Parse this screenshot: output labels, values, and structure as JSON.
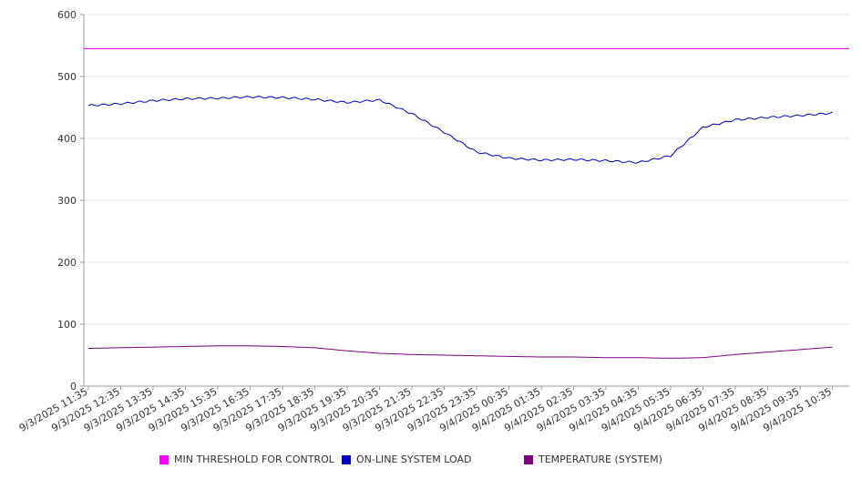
{
  "chart_data": {
    "type": "line",
    "x": [
      "9/3/2025 11:35",
      "9/3/2025 12:35",
      "9/3/2025 13:35",
      "9/3/2025 14:35",
      "9/3/2025 15:35",
      "9/3/2025 16:35",
      "9/3/2025 17:35",
      "9/3/2025 18:35",
      "9/3/2025 19:35",
      "9/3/2025 20:35",
      "9/3/2025 21:35",
      "9/3/2025 22:35",
      "9/3/2025 23:35",
      "9/4/2025 00:35",
      "9/4/2025 01:35",
      "9/4/2025 02:35",
      "9/4/2025 03:35",
      "9/4/2025 04:35",
      "9/4/2025 05:35",
      "9/4/2025 06:35",
      "9/4/2025 07:35",
      "9/4/2025 08:35",
      "9/4/2025 09:35",
      "9/4/2025 10:35"
    ],
    "ylim": [
      0,
      600
    ],
    "yticks": [
      0,
      100,
      200,
      300,
      400,
      500,
      600
    ],
    "grid": true,
    "legend_position": "bottom",
    "series": [
      {
        "name": "MIN THRESHOLD FOR CONTROL",
        "color": "#ff00ff",
        "values": [
          545,
          545,
          545,
          545,
          545,
          545,
          545,
          545,
          545,
          545,
          545,
          545,
          545,
          545,
          545,
          545,
          545,
          545,
          545,
          545,
          545,
          545,
          545,
          545
        ]
      },
      {
        "name": "ON-LINE SYSTEM LOAD",
        "color": "#0000cc",
        "values": [
          453,
          456,
          461,
          464,
          465,
          467,
          466,
          463,
          458,
          462,
          440,
          410,
          378,
          368,
          365,
          366,
          364,
          361,
          372,
          418,
          430,
          434,
          437,
          441
        ]
      },
      {
        "name": "TEMPERATURE (SYSTEM)",
        "color": "#800080",
        "values": [
          61,
          62,
          63,
          64,
          65,
          65,
          64,
          62,
          57,
          53,
          51,
          50,
          49,
          48,
          47,
          47,
          46,
          46,
          45,
          46,
          51,
          55,
          59,
          63
        ]
      }
    ]
  }
}
